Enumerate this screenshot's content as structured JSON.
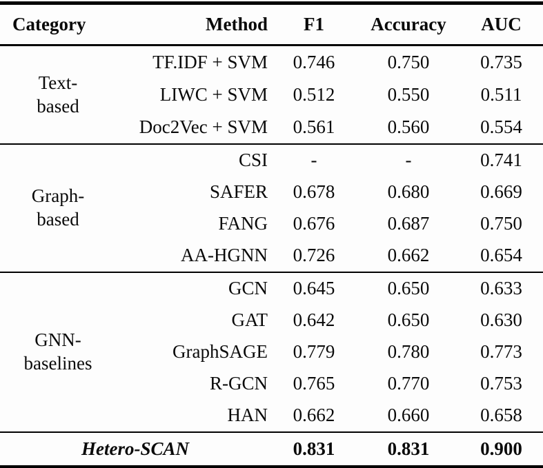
{
  "page": {
    "background_color": "#fdfdfd",
    "text_color": "#0a0a0a",
    "rule_color": "#000000"
  },
  "table": {
    "headers": {
      "category": "Category",
      "method": "Method",
      "f1": "F1",
      "accuracy": "Accuracy",
      "auc": "AUC"
    },
    "sections": [
      {
        "category": "Text-\nbased",
        "rows": [
          {
            "method": "TF.IDF + SVM",
            "f1": "0.746",
            "accuracy": "0.750",
            "auc": "0.735"
          },
          {
            "method": "LIWC + SVM",
            "f1": "0.512",
            "accuracy": "0.550",
            "auc": "0.511"
          },
          {
            "method": "Doc2Vec + SVM",
            "f1": "0.561",
            "accuracy": "0.560",
            "auc": "0.554"
          }
        ]
      },
      {
        "category": "Graph-\nbased",
        "rows": [
          {
            "method": "CSI",
            "f1": "-",
            "accuracy": "-",
            "auc": "0.741"
          },
          {
            "method": "SAFER",
            "f1": "0.678",
            "accuracy": "0.680",
            "auc": "0.669"
          },
          {
            "method": "FANG",
            "f1": "0.676",
            "accuracy": "0.687",
            "auc": "0.750"
          },
          {
            "method": "AA-HGNN",
            "f1": "0.726",
            "accuracy": "0.662",
            "auc": "0.654"
          }
        ]
      },
      {
        "category": "GNN-\nbaselines",
        "rows": [
          {
            "method": "GCN",
            "f1": "0.645",
            "accuracy": "0.650",
            "auc": "0.633"
          },
          {
            "method": "GAT",
            "f1": "0.642",
            "accuracy": "0.650",
            "auc": "0.630"
          },
          {
            "method": "GraphSAGE",
            "f1": "0.779",
            "accuracy": "0.780",
            "auc": "0.773"
          },
          {
            "method": "R-GCN",
            "f1": "0.765",
            "accuracy": "0.770",
            "auc": "0.753"
          },
          {
            "method": "HAN",
            "f1": "0.662",
            "accuracy": "0.660",
            "auc": "0.658"
          }
        ]
      }
    ],
    "footer": {
      "method": "Hetero-SCAN",
      "f1": "0.831",
      "accuracy": "0.831",
      "auc": "0.900"
    }
  }
}
